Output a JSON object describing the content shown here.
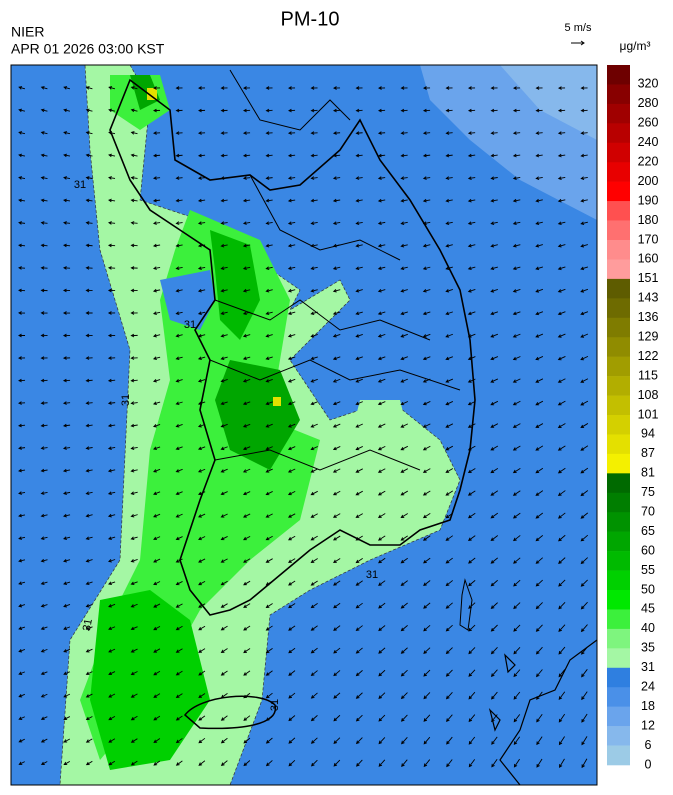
{
  "header": {
    "title": "PM-10",
    "agency": "NIER",
    "time": "APR 01 2026 03:00 KST",
    "wind_scale": "5 m/s",
    "unit": "μg/m³"
  },
  "map": {
    "contour_labels": [
      "31",
      "31",
      "31",
      "31",
      "31",
      "31"
    ]
  },
  "legend": {
    "labels": [
      "320",
      "280",
      "260",
      "240",
      "220",
      "200",
      "190",
      "180",
      "170",
      "160",
      "151",
      "143",
      "136",
      "129",
      "122",
      "115",
      "108",
      "101",
      "94",
      "87",
      "81",
      "75",
      "70",
      "65",
      "60",
      "55",
      "50",
      "45",
      "40",
      "35",
      "31",
      "24",
      "18",
      "12",
      "6",
      "0"
    ],
    "colors": [
      "#6e0000",
      "#880000",
      "#a00000",
      "#b80000",
      "#d00000",
      "#e80000",
      "#ff0000",
      "#ff5050",
      "#ff7070",
      "#ff8c8c",
      "#ff9c9c",
      "#5e5c00",
      "#6e6b00",
      "#7f7c00",
      "#908c00",
      "#a19d00",
      "#b2ae00",
      "#c3bf00",
      "#d4d000",
      "#e4e000",
      "#f4f000",
      "#006a00",
      "#007e00",
      "#009200",
      "#00a600",
      "#00ba00",
      "#00d000",
      "#00e800",
      "#3cf03c",
      "#7ef57e",
      "#a4f7a4",
      "#2f7fe0",
      "#4a90e8",
      "#6aa4ec",
      "#86b8ec",
      "#9ccbe6"
    ]
  }
}
